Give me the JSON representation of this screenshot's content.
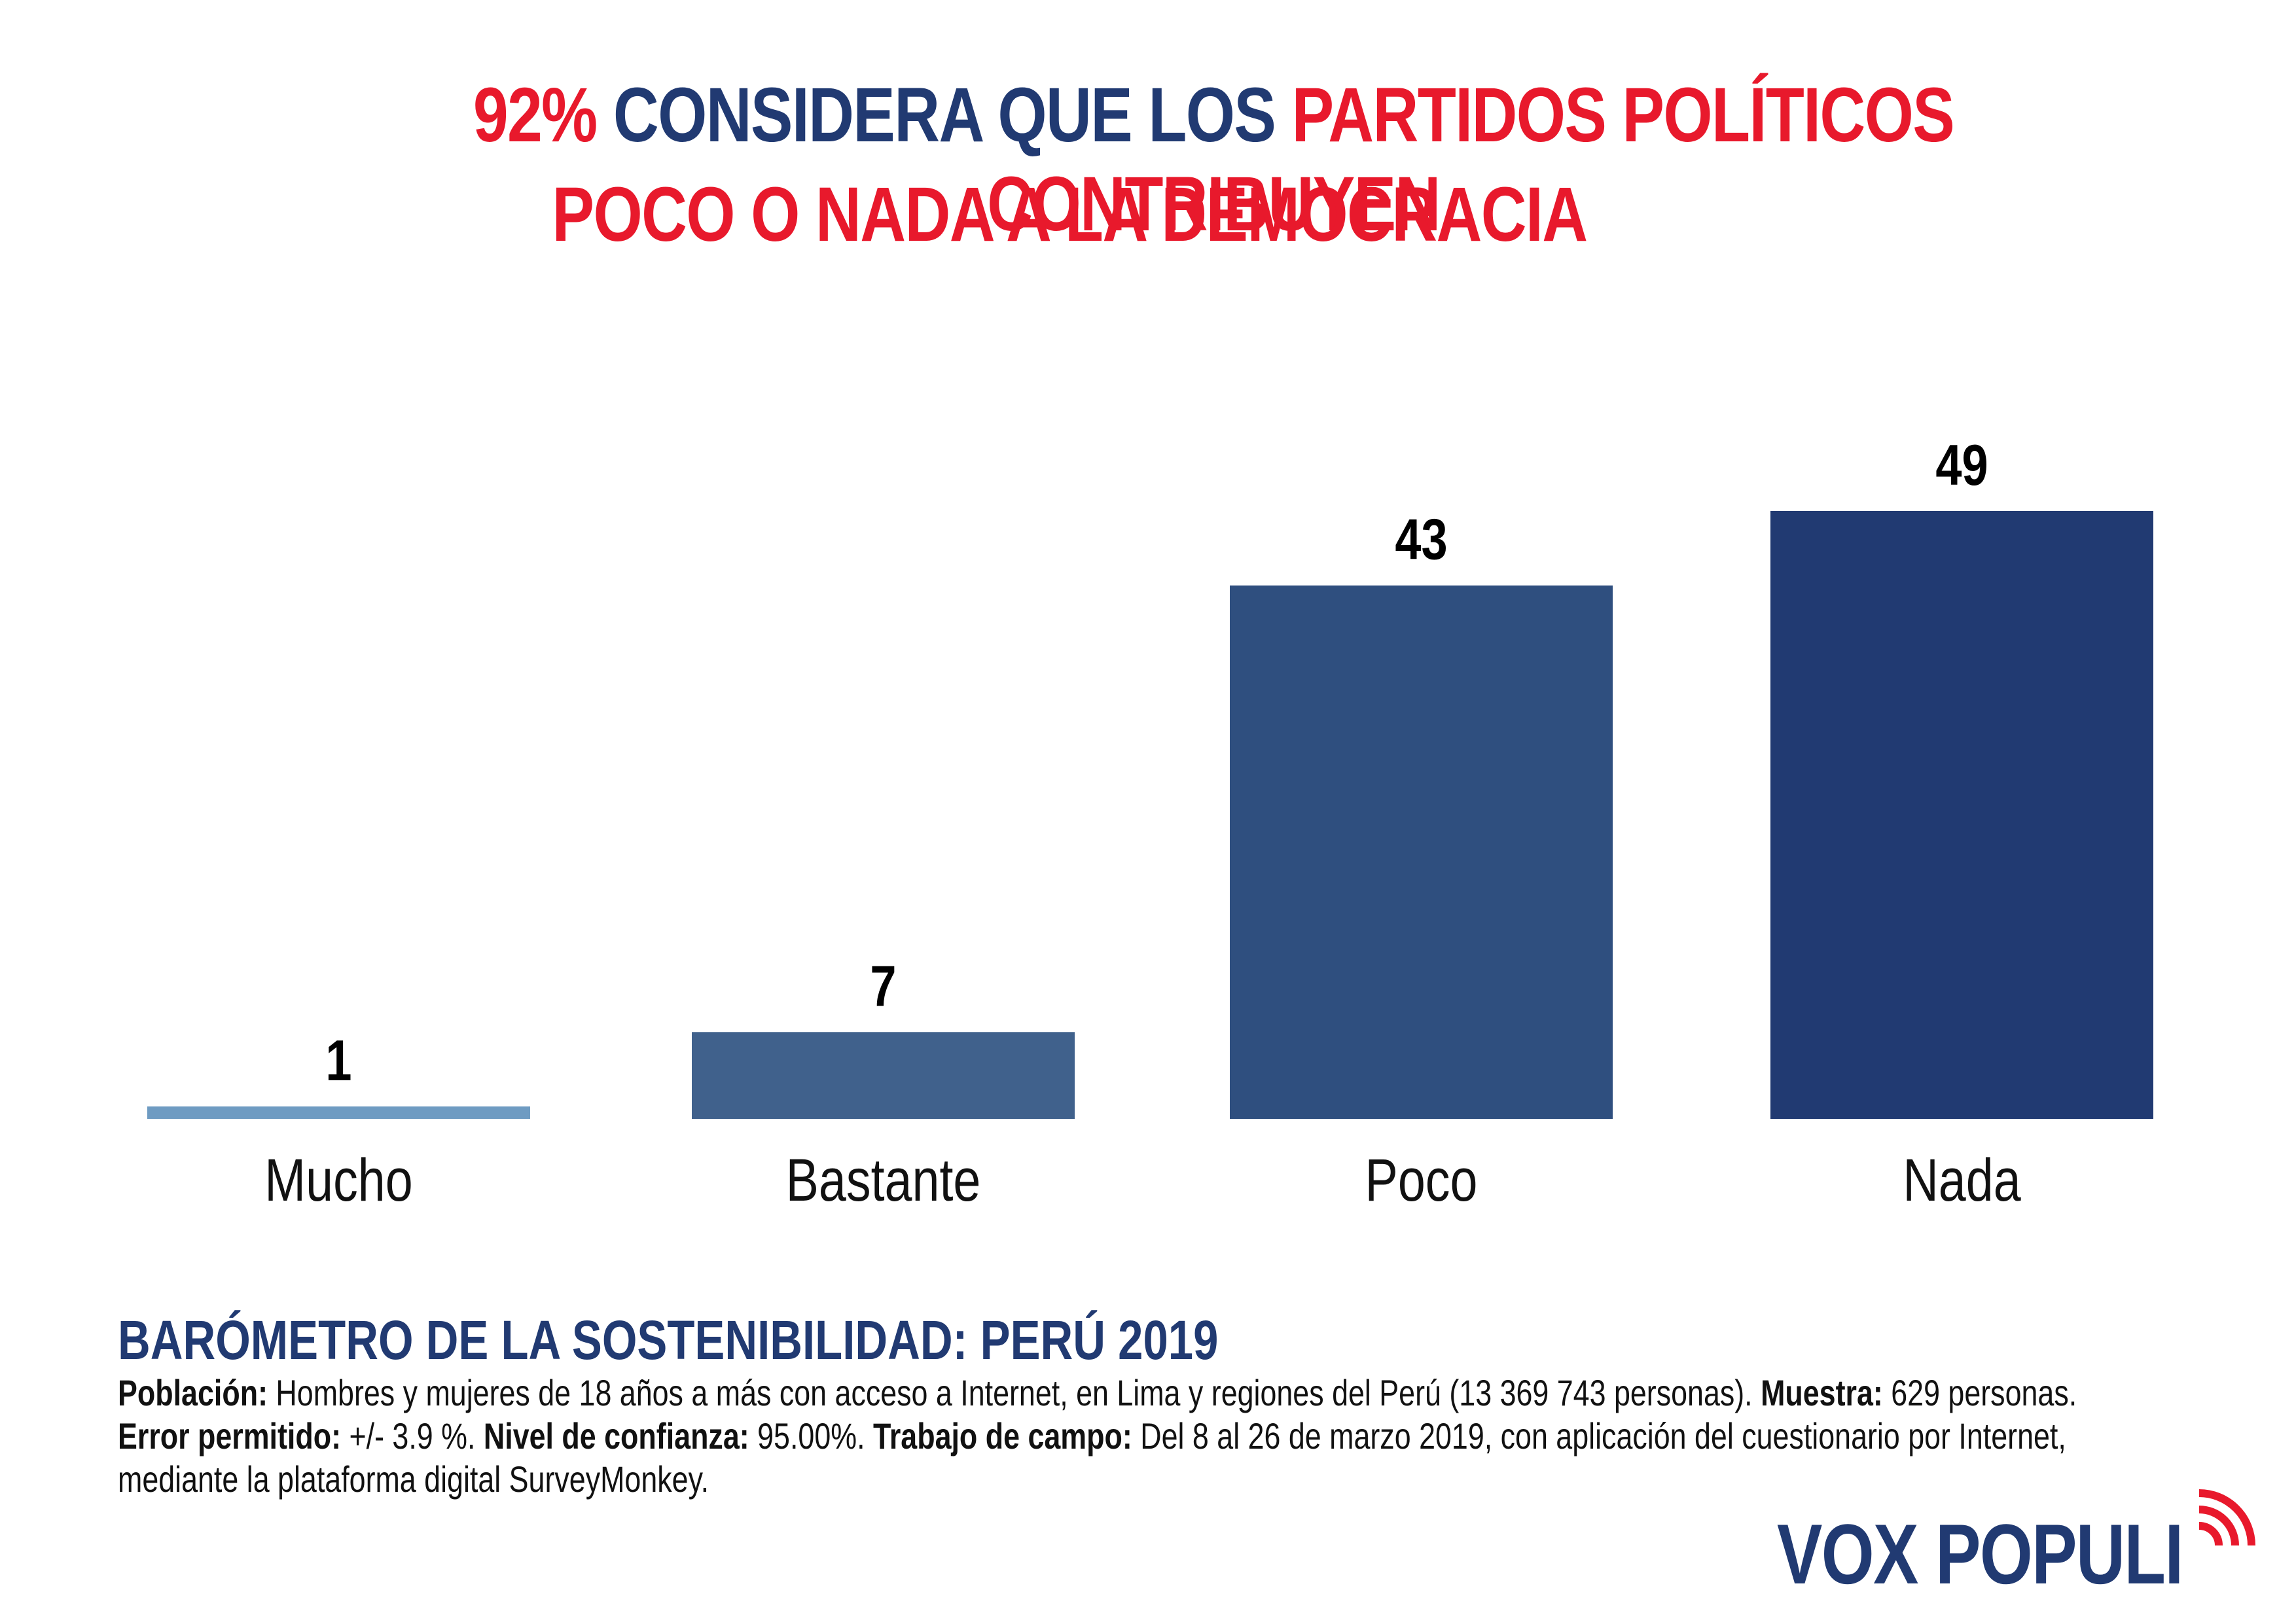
{
  "title": {
    "line1": [
      {
        "text": "92% ",
        "color": "red"
      },
      {
        "text": "CONSIDERA QUE LOS ",
        "color": "blue"
      },
      {
        "text": "PARTIDOS POLÍTICOS CONTRIBUYEN",
        "color": "red"
      }
    ],
    "line2": "POCO O NADA A LA DEMOCRACIA"
  },
  "colors": {
    "red": "#E8192C",
    "blue": "#213A72",
    "bars": [
      "#6E9BC2",
      "#40618C",
      "#2F4F7F",
      "#213A72"
    ]
  },
  "chart_data": {
    "type": "bar",
    "title": "92% CONSIDERA QUE LOS PARTIDOS POLÍTICOS CONTRIBUYEN POCO O NADA A LA DEMOCRACIA",
    "categories": [
      "Mucho",
      "Bastante",
      "Poco",
      "Nada"
    ],
    "values": [
      1,
      7,
      43,
      49
    ],
    "value_labels": [
      "1",
      "7",
      "43",
      "49"
    ],
    "xlabel": "",
    "ylabel": "",
    "ylim": [
      0,
      49
    ],
    "grid": false,
    "legend": "none"
  },
  "footer": {
    "title": "BARÓMETRO DE LA SOSTENIBILIDAD: PERÚ 2019",
    "line1": [
      {
        "b": "Población:",
        "t": " Hombres y mujeres de 18 años a más con acceso a Internet, en Lima y regiones del Perú (13 369 743 personas). "
      },
      {
        "b": "Muestra:",
        "t": " 629 personas."
      }
    ],
    "line2": [
      {
        "b": "Error permitido:",
        "t": " +/- 3.9 %. "
      },
      {
        "b": "Nivel de confianza:",
        "t": " 95.00%. "
      },
      {
        "b": "Trabajo de campo:",
        "t": " Del 8 al 26 de marzo 2019, con aplicación del cuestionario por Internet,"
      }
    ],
    "line3": "mediante la plataforma digital SurveyMonkey."
  },
  "logo": {
    "text": "VOX POPULI",
    "icon": "broadcast-waves-icon"
  }
}
